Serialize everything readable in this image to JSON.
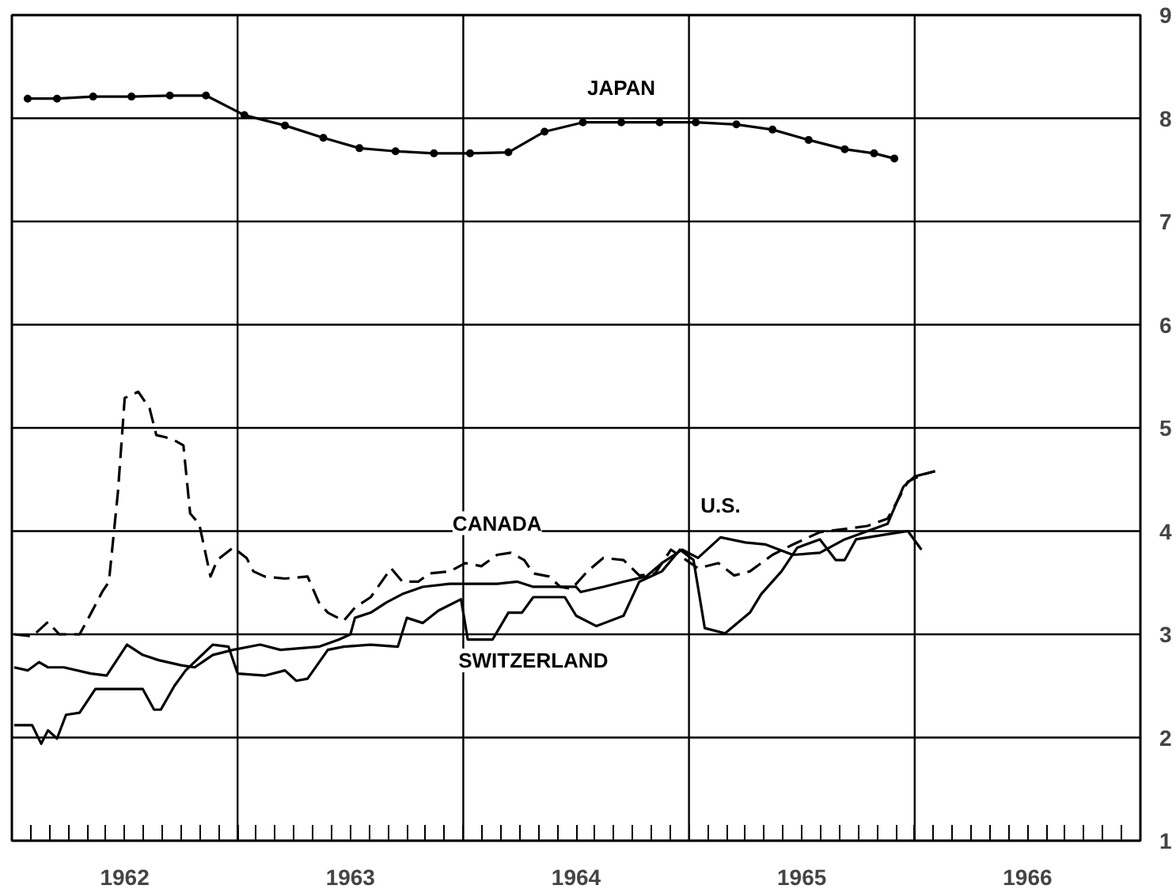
{
  "chart_data": {
    "type": "line",
    "xlim": [
      1962,
      1967
    ],
    "ylim": [
      1,
      9
    ],
    "xticks": [
      {
        "value": 1962.5,
        "label": "1962"
      },
      {
        "value": 1963,
        "label": null
      },
      {
        "value": 1963.5,
        "label": "1963"
      },
      {
        "value": 1964,
        "label": null
      },
      {
        "value": 1964.5,
        "label": "1964"
      },
      {
        "value": 1965,
        "label": null
      },
      {
        "value": 1965.5,
        "label": "1965"
      },
      {
        "value": 1966,
        "label": null
      },
      {
        "value": 1966.5,
        "label": "1966"
      }
    ],
    "yticks": [
      1,
      2,
      3,
      4,
      5,
      6,
      7,
      8,
      9
    ],
    "grid": true,
    "series": [
      {
        "name": "JAPAN",
        "color": "#000000",
        "marker": "circle",
        "line_style": "solid",
        "x": [
          1962.07,
          1962.2,
          1962.36,
          1962.53,
          1962.7,
          1962.86,
          1963.03,
          1963.21,
          1963.38,
          1963.54,
          1963.7,
          1963.87,
          1964.03,
          1964.2,
          1964.36,
          1964.53,
          1964.7,
          1964.87,
          1965.03,
          1965.21,
          1965.37,
          1965.53,
          1965.69,
          1965.82,
          1965.91
        ],
        "values": [
          8.19,
          8.19,
          8.21,
          8.21,
          8.22,
          8.22,
          8.03,
          7.93,
          7.81,
          7.71,
          7.68,
          7.66,
          7.66,
          7.67,
          7.87,
          7.96,
          7.96,
          7.96,
          7.96,
          7.94,
          7.89,
          7.79,
          7.7,
          7.66,
          7.61
        ]
      },
      {
        "name": "CANADA",
        "color": "#000000",
        "marker": "none",
        "line_style": "dashed",
        "x": [
          1962.01,
          1962.09,
          1962.16,
          1962.21,
          1962.3,
          1962.34,
          1962.4,
          1962.43,
          1962.47,
          1962.5,
          1962.56,
          1962.61,
          1962.64,
          1962.68,
          1962.72,
          1962.76,
          1962.79,
          1962.83,
          1962.88,
          1962.91,
          1962.98,
          1963.04,
          1963.07,
          1963.12,
          1963.21,
          1963.31,
          1963.36,
          1963.4,
          1963.47,
          1963.52,
          1963.59,
          1963.68,
          1963.73,
          1963.8,
          1963.85,
          1963.94,
          1964.01,
          1964.08,
          1964.15,
          1964.21,
          1964.27,
          1964.31,
          1964.38,
          1964.43,
          1964.48,
          1964.55,
          1964.62,
          1964.71,
          1964.78,
          1964.85,
          1964.92,
          1965.04,
          1965.13,
          1965.2,
          1965.27,
          1965.37,
          1965.46,
          1965.58,
          1965.69,
          1965.79,
          1965.88,
          1965.97,
          1966.04,
          1966.09
        ],
        "values": [
          3.0,
          2.98,
          3.12,
          3.0,
          3.0,
          3.16,
          3.41,
          3.51,
          4.38,
          5.29,
          5.35,
          5.19,
          4.93,
          4.91,
          4.88,
          4.83,
          4.17,
          4.07,
          3.56,
          3.72,
          3.84,
          3.74,
          3.61,
          3.56,
          3.54,
          3.56,
          3.31,
          3.21,
          3.13,
          3.26,
          3.36,
          3.64,
          3.51,
          3.51,
          3.59,
          3.61,
          3.69,
          3.66,
          3.77,
          3.79,
          3.72,
          3.59,
          3.56,
          3.46,
          3.44,
          3.61,
          3.74,
          3.72,
          3.57,
          3.59,
          3.82,
          3.64,
          3.69,
          3.57,
          3.61,
          3.77,
          3.87,
          3.99,
          4.02,
          4.05,
          4.12,
          4.48,
          4.55,
          4.58
        ]
      },
      {
        "name": "U.S.",
        "color": "#000000",
        "marker": "none",
        "line_style": "solid",
        "x": [
          1962.01,
          1962.07,
          1962.12,
          1962.16,
          1962.23,
          1962.35,
          1962.42,
          1962.45,
          1962.51,
          1962.58,
          1962.65,
          1962.75,
          1962.81,
          1962.89,
          1962.98,
          1963.1,
          1963.19,
          1963.36,
          1963.45,
          1963.5,
          1963.52,
          1963.59,
          1963.66,
          1963.73,
          1963.82,
          1963.94,
          1964.06,
          1964.15,
          1964.24,
          1964.31,
          1964.41,
          1964.5,
          1964.52,
          1964.62,
          1964.71,
          1964.81,
          1964.88,
          1964.97,
          1965.04,
          1965.14,
          1965.25,
          1965.34,
          1965.46,
          1965.58,
          1965.69,
          1965.88,
          1965.95,
          1966.0,
          1966.09
        ],
        "values": [
          2.68,
          2.65,
          2.73,
          2.68,
          2.68,
          2.62,
          2.6,
          2.7,
          2.9,
          2.8,
          2.75,
          2.7,
          2.68,
          2.8,
          2.85,
          2.9,
          2.85,
          2.88,
          2.95,
          3.0,
          3.16,
          3.21,
          3.31,
          3.39,
          3.46,
          3.49,
          3.49,
          3.49,
          3.51,
          3.46,
          3.46,
          3.46,
          3.41,
          3.46,
          3.51,
          3.56,
          3.69,
          3.82,
          3.74,
          3.94,
          3.89,
          3.87,
          3.77,
          3.79,
          3.92,
          4.07,
          4.43,
          4.53,
          4.58
        ]
      },
      {
        "name": "SWITZERLAND",
        "color": "#000000",
        "marker": "none",
        "line_style": "solid",
        "x": [
          1962.01,
          1962.09,
          1962.13,
          1962.16,
          1962.2,
          1962.24,
          1962.3,
          1962.37,
          1962.58,
          1962.63,
          1962.66,
          1962.72,
          1962.77,
          1962.89,
          1962.96,
          1963.0,
          1963.12,
          1963.21,
          1963.26,
          1963.31,
          1963.4,
          1963.47,
          1963.59,
          1963.71,
          1963.75,
          1963.82,
          1963.89,
          1963.99,
          1964.02,
          1964.13,
          1964.2,
          1964.26,
          1964.31,
          1964.45,
          1964.5,
          1964.59,
          1964.71,
          1964.78,
          1964.88,
          1964.96,
          1965.02,
          1965.07,
          1965.16,
          1965.27,
          1965.32,
          1965.41,
          1965.48,
          1965.58,
          1965.65,
          1965.69,
          1965.74,
          1965.88,
          1965.97,
          1966.03
        ],
        "values": [
          2.12,
          2.12,
          1.94,
          2.07,
          1.99,
          2.22,
          2.24,
          2.47,
          2.47,
          2.27,
          2.27,
          2.5,
          2.65,
          2.9,
          2.88,
          2.62,
          2.6,
          2.65,
          2.55,
          2.57,
          2.85,
          2.88,
          2.9,
          2.88,
          3.16,
          3.11,
          3.23,
          3.34,
          2.95,
          2.95,
          3.21,
          3.21,
          3.36,
          3.36,
          3.18,
          3.08,
          3.18,
          3.51,
          3.61,
          3.82,
          3.72,
          3.06,
          3.01,
          3.21,
          3.39,
          3.61,
          3.84,
          3.92,
          3.72,
          3.72,
          3.92,
          3.97,
          4.0,
          3.82
        ]
      }
    ],
    "legend": false
  }
}
